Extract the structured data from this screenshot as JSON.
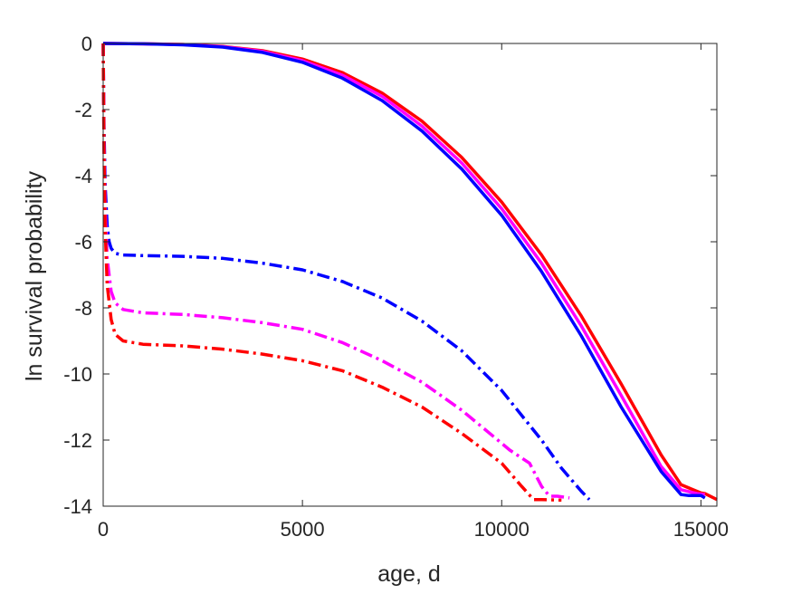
{
  "chart_data": {
    "type": "line",
    "title": "",
    "xlabel": "age, d",
    "ylabel": "ln survival probability",
    "xlim": [
      0,
      15400
    ],
    "ylim": [
      -14,
      0
    ],
    "xticks": [
      0,
      5000,
      10000,
      15000
    ],
    "xtick_labels": [
      "0",
      "5000",
      "10000",
      "15000"
    ],
    "yticks": [
      0,
      -2,
      -4,
      -6,
      -8,
      -10,
      -12,
      -14
    ],
    "ytick_labels": [
      "0",
      "-2",
      "-4",
      "-6",
      "-8",
      "-10",
      "-12",
      "-14"
    ],
    "grid": false,
    "legend": "none",
    "box": true,
    "series": [
      {
        "color": "#ff0000",
        "style": "solid",
        "x": [
          0,
          1000,
          2000,
          3000,
          4000,
          5000,
          6000,
          7000,
          8000,
          9000,
          10000,
          11000,
          12000,
          13000,
          14000,
          14500,
          15000,
          15100,
          15400
        ],
        "y": [
          0,
          -0.01,
          -0.03,
          -0.09,
          -0.22,
          -0.47,
          -0.88,
          -1.5,
          -2.35,
          -3.45,
          -4.8,
          -6.4,
          -8.25,
          -10.3,
          -12.45,
          -13.35,
          -13.6,
          -13.62,
          -13.8
        ]
      },
      {
        "color": "#ff00ff",
        "style": "solid",
        "x": [
          0,
          1000,
          2000,
          3000,
          4000,
          5000,
          6000,
          7000,
          8000,
          9000,
          10000,
          11000,
          12000,
          13000,
          14000,
          14500,
          14900,
          15100
        ],
        "y": [
          0,
          -0.01,
          -0.03,
          -0.1,
          -0.24,
          -0.52,
          -0.96,
          -1.6,
          -2.5,
          -3.62,
          -5.0,
          -6.65,
          -8.55,
          -10.65,
          -12.8,
          -13.5,
          -13.62,
          -13.65
        ]
      },
      {
        "color": "#0000ff",
        "style": "solid",
        "x": [
          0,
          1000,
          2000,
          3000,
          4000,
          5000,
          6000,
          7000,
          8000,
          9000,
          10000,
          11000,
          12000,
          13000,
          14000,
          14500,
          14700,
          15000,
          15100
        ],
        "y": [
          0,
          -0.01,
          -0.04,
          -0.11,
          -0.27,
          -0.57,
          -1.05,
          -1.73,
          -2.65,
          -3.8,
          -5.2,
          -6.9,
          -8.85,
          -11.0,
          -12.95,
          -13.65,
          -13.68,
          -13.68,
          -13.75
        ]
      },
      {
        "color": "#0000ff",
        "style": "dashdot",
        "x": [
          0,
          20,
          50,
          100,
          150,
          200,
          300,
          500,
          1000,
          2000,
          3000,
          4000,
          5000,
          6000,
          7000,
          8000,
          9000,
          10000,
          11000,
          11500,
          12000,
          12200
        ],
        "y": [
          0,
          -2.5,
          -4.3,
          -5.5,
          -6.0,
          -6.2,
          -6.35,
          -6.4,
          -6.42,
          -6.44,
          -6.5,
          -6.65,
          -6.85,
          -7.2,
          -7.7,
          -8.4,
          -9.3,
          -10.5,
          -12.0,
          -12.85,
          -13.55,
          -13.8
        ]
      },
      {
        "color": "#ff00ff",
        "style": "dashdot",
        "x": [
          0,
          20,
          50,
          100,
          200,
          300,
          500,
          1000,
          2000,
          3000,
          4000,
          5000,
          6000,
          7000,
          8000,
          9000,
          9800,
          10200,
          10700,
          11000,
          11200,
          11400,
          11700
        ],
        "y": [
          0,
          -3.0,
          -5.0,
          -6.5,
          -7.5,
          -7.85,
          -8.05,
          -8.15,
          -8.2,
          -8.3,
          -8.45,
          -8.65,
          -9.05,
          -9.6,
          -10.25,
          -11.1,
          -11.9,
          -12.3,
          -12.7,
          -13.4,
          -13.7,
          -13.7,
          -13.75
        ]
      },
      {
        "color": "#ff0000",
        "style": "dashdot",
        "x": [
          0,
          20,
          50,
          100,
          200,
          300,
          500,
          1000,
          2000,
          3000,
          4000,
          5000,
          6000,
          7000,
          8000,
          9000,
          10000,
          10500,
          10800,
          11000,
          11500
        ],
        "y": [
          0,
          -3.3,
          -5.6,
          -7.3,
          -8.35,
          -8.8,
          -9.0,
          -9.1,
          -9.15,
          -9.25,
          -9.4,
          -9.6,
          -9.9,
          -10.4,
          -11.0,
          -11.8,
          -12.7,
          -13.4,
          -13.8,
          -13.8,
          -13.82
        ]
      }
    ]
  }
}
